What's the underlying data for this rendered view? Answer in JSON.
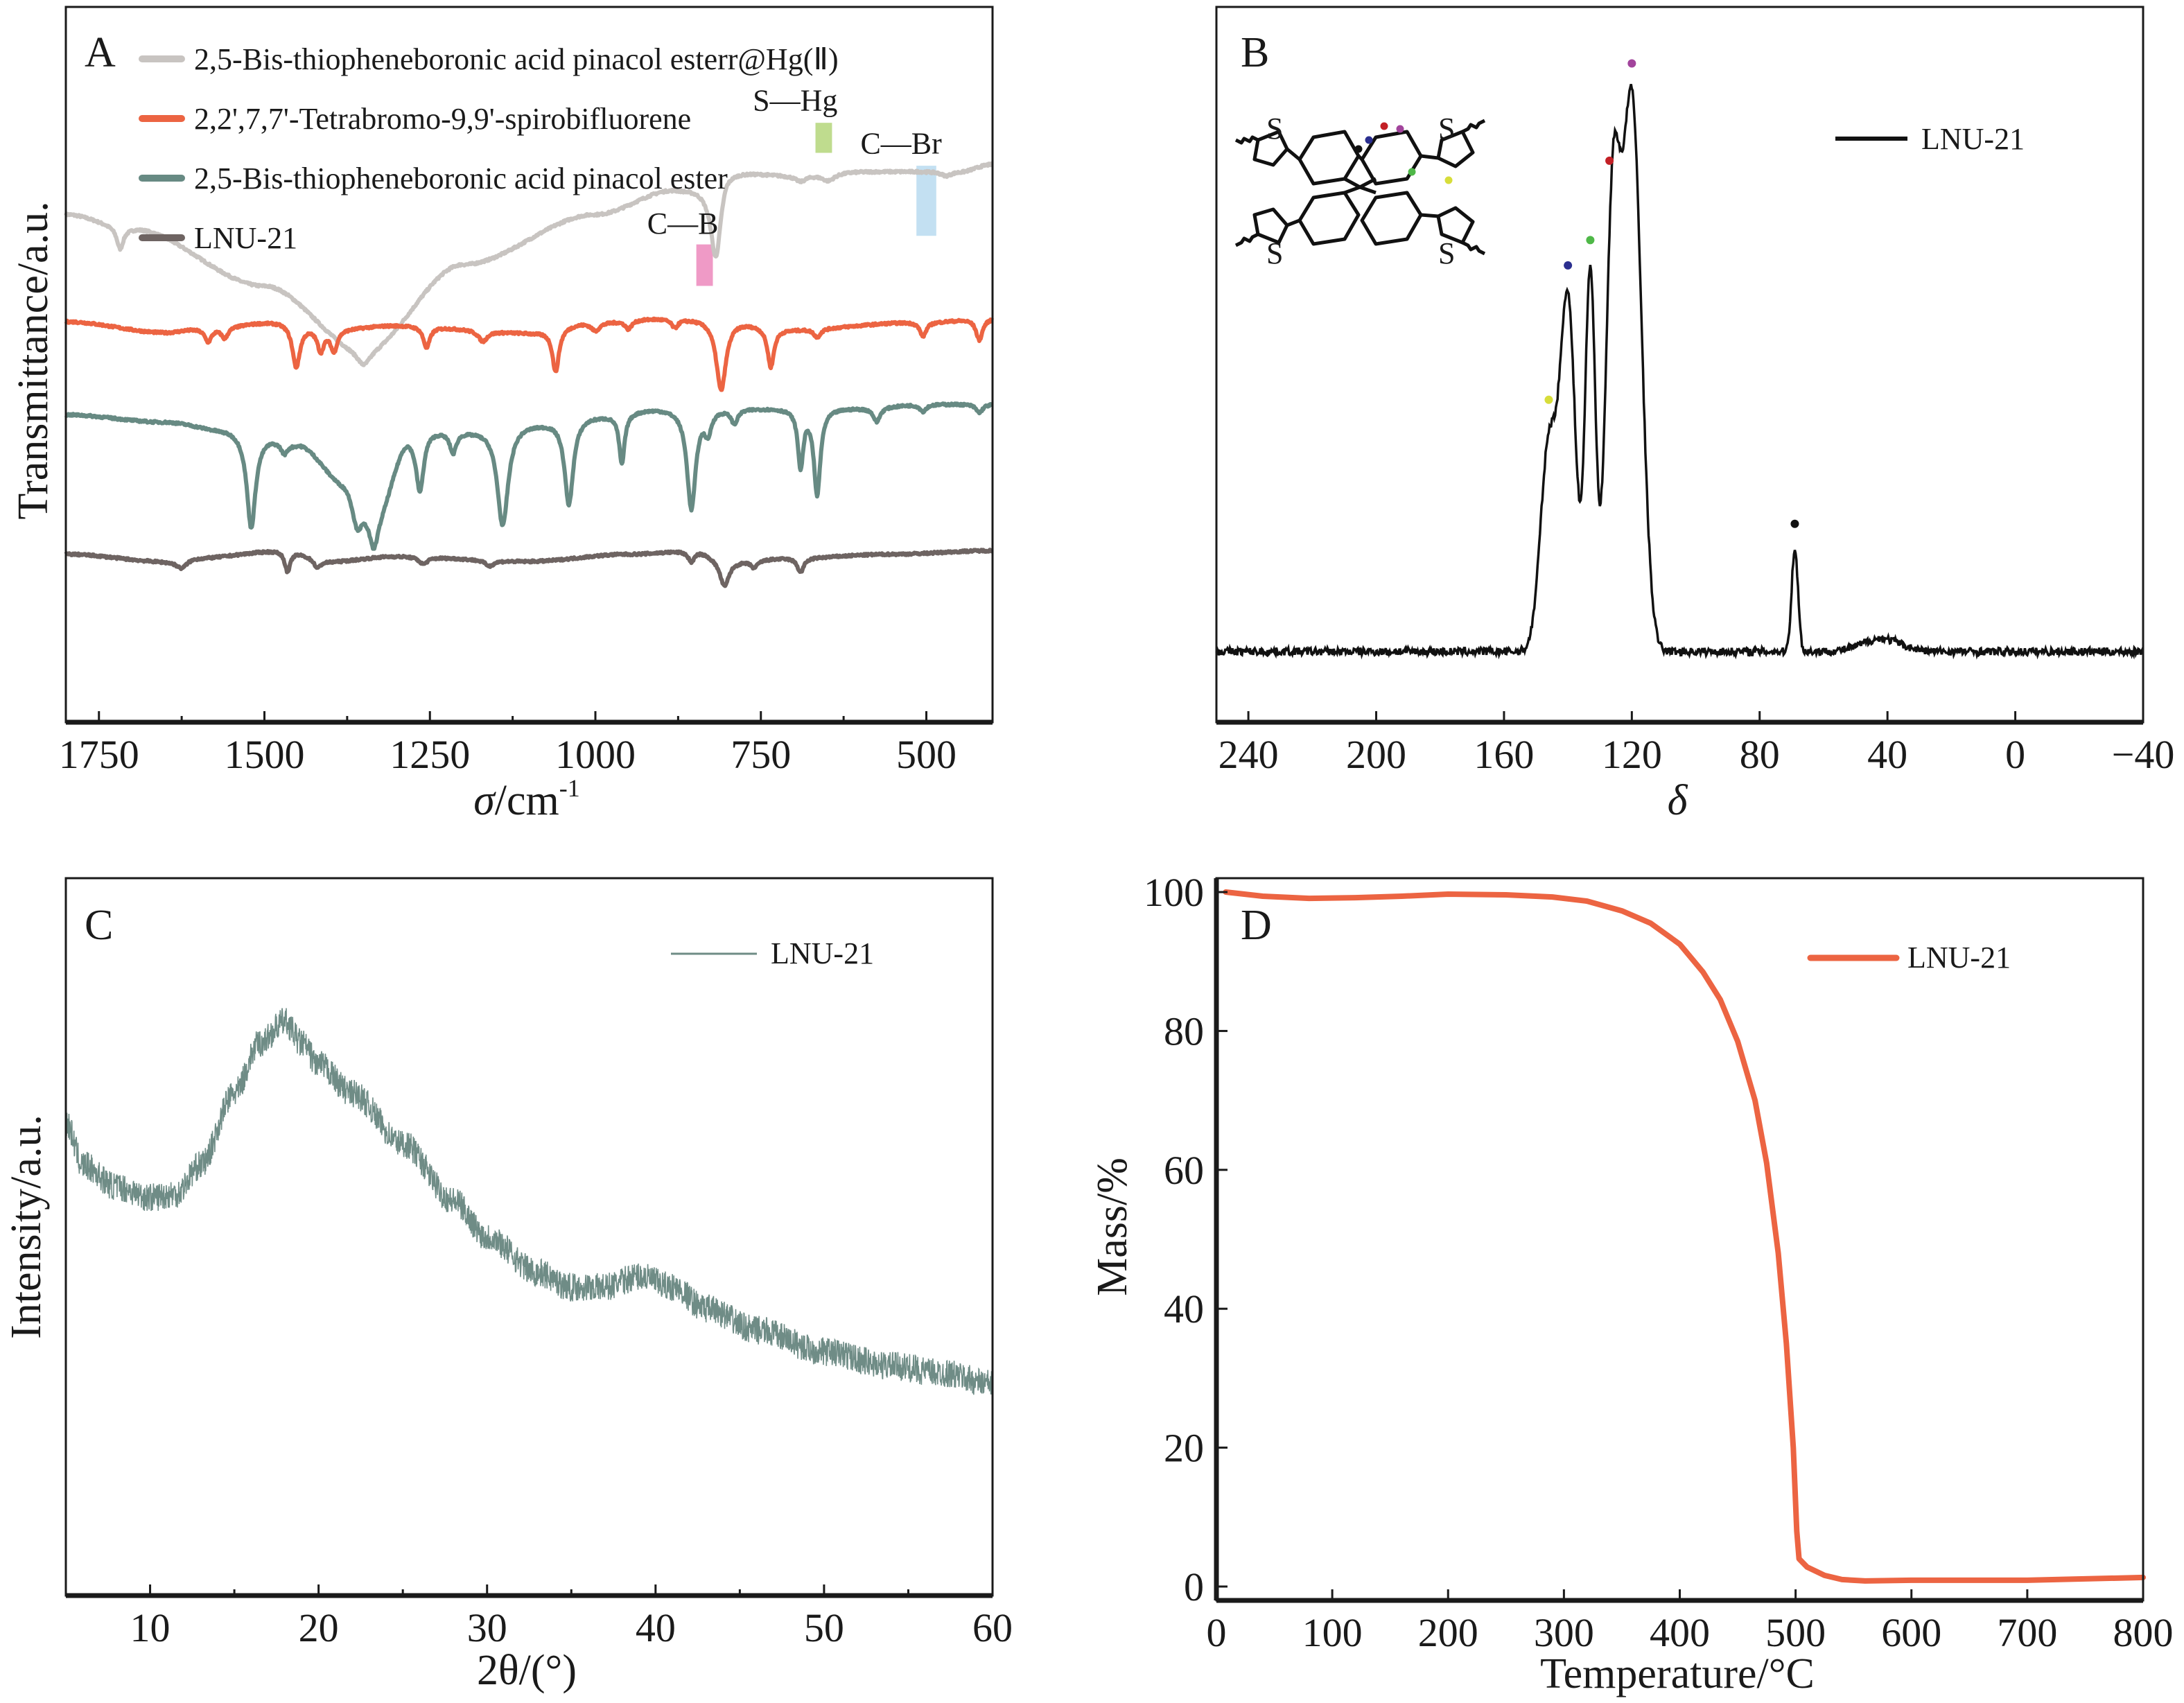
{
  "figure": {
    "panels": [
      "A",
      "B",
      "C",
      "D"
    ]
  },
  "chart_data": [
    {
      "id": "A",
      "type": "line",
      "title": "",
      "panel_label": "A",
      "xlabel": "σ/cm",
      "xlabel_superscript": "-1",
      "ylabel": "Transmittance/a.u.",
      "xlim": [
        1800,
        400
      ],
      "x_reversed": true,
      "xticks": [
        1750,
        1500,
        1250,
        1000,
        750,
        500
      ],
      "xtick_labels": [
        "1750",
        "1500",
        "1250",
        "1000",
        "750",
        "500"
      ],
      "yticks": [],
      "grid": false,
      "legend_position": "top-left",
      "series": [
        {
          "name": "2,5-Bis-thiopheneboronic acid pinacol esterr@Hg(Ⅱ)",
          "color": "#c8c4c1",
          "offset": 0.74,
          "baseline_points": [
            [
              1800,
              0.71
            ],
            [
              1700,
              0.69
            ],
            [
              1500,
              0.61
            ],
            [
              1350,
              0.52
            ],
            [
              1200,
              0.64
            ],
            [
              1000,
              0.71
            ],
            [
              880,
              0.745
            ],
            [
              850,
              0.745
            ],
            [
              820,
              0.74
            ],
            [
              800,
              0.77
            ],
            [
              700,
              0.765
            ],
            [
              600,
              0.77
            ],
            [
              450,
              0.77
            ],
            [
              400,
              0.78
            ]
          ],
          "peaks": [
            [
              1718,
              0.03,
              6
            ],
            [
              1350,
              0.02,
              12
            ],
            [
              818,
              0.09,
              9
            ],
            [
              690,
              0.008,
              10
            ],
            [
              648,
              0.01,
              12
            ],
            [
              470,
              0.006,
              10
            ]
          ]
        },
        {
          "name": "2,2',7,7'-Tetrabromo-9,9'-spirobifluorene",
          "color": "#ec6442",
          "baseline_points": [
            [
              1800,
              0.56
            ],
            [
              1650,
              0.545
            ],
            [
              1600,
              0.55
            ],
            [
              1480,
              0.56
            ],
            [
              1400,
              0.55
            ],
            [
              1300,
              0.555
            ],
            [
              1100,
              0.545
            ],
            [
              1000,
              0.56
            ],
            [
              900,
              0.565
            ],
            [
              820,
              0.565
            ],
            [
              700,
              0.55
            ],
            [
              500,
              0.56
            ],
            [
              400,
              0.565
            ]
          ],
          "peaks": [
            [
              1585,
              0.018,
              6
            ],
            [
              1560,
              0.015,
              6
            ],
            [
              1452,
              0.06,
              7
            ],
            [
              1415,
              0.03,
              6
            ],
            [
              1395,
              0.03,
              6
            ],
            [
              1255,
              0.03,
              6
            ],
            [
              1170,
              0.015,
              8
            ],
            [
              1060,
              0.06,
              6
            ],
            [
              1000,
              0.012,
              8
            ],
            [
              950,
              0.012,
              6
            ],
            [
              880,
              0.012,
              6
            ],
            [
              810,
              0.1,
              9
            ],
            [
              735,
              0.055,
              6
            ],
            [
              665,
              0.012,
              6
            ],
            [
              505,
              0.02,
              6
            ],
            [
              420,
              0.03,
              6
            ]
          ]
        },
        {
          "name": "2,5-Bis-thiopheneboronic acid pinacol ester",
          "color": "#678a83",
          "baseline_points": [
            [
              1800,
              0.43
            ],
            [
              1650,
              0.42
            ],
            [
              1560,
              0.41
            ],
            [
              1500,
              0.4
            ],
            [
              1450,
              0.39
            ],
            [
              1380,
              0.34
            ],
            [
              1330,
              0.3
            ],
            [
              1280,
              0.4
            ],
            [
              1250,
              0.41
            ],
            [
              1200,
              0.41
            ],
            [
              1100,
              0.42
            ],
            [
              1000,
              0.43
            ],
            [
              900,
              0.44
            ],
            [
              800,
              0.44
            ],
            [
              700,
              0.44
            ],
            [
              600,
              0.44
            ],
            [
              500,
              0.445
            ],
            [
              400,
              0.445
            ]
          ],
          "peaks": [
            [
              1520,
              0.13,
              8
            ],
            [
              1470,
              0.015,
              6
            ],
            [
              1360,
              0.05,
              10
            ],
            [
              1335,
              0.05,
              8
            ],
            [
              1265,
              0.08,
              7
            ],
            [
              1215,
              0.03,
              6
            ],
            [
              1140,
              0.14,
              10
            ],
            [
              1040,
              0.12,
              8
            ],
            [
              960,
              0.07,
              5
            ],
            [
              855,
              0.14,
              8
            ],
            [
              830,
              0.03,
              6
            ],
            [
              790,
              0.02,
              6
            ],
            [
              690,
              0.08,
              5
            ],
            [
              665,
              0.12,
              6
            ],
            [
              575,
              0.02,
              6
            ],
            [
              505,
              0.01,
              6
            ],
            [
              420,
              0.012,
              6
            ]
          ]
        },
        {
          "name": "LNU-21",
          "color": "#6e6462",
          "baseline_points": [
            [
              1800,
              0.235
            ],
            [
              1650,
              0.225
            ],
            [
              1600,
              0.23
            ],
            [
              1470,
              0.24
            ],
            [
              1400,
              0.225
            ],
            [
              1300,
              0.232
            ],
            [
              1100,
              0.225
            ],
            [
              950,
              0.235
            ],
            [
              850,
              0.24
            ],
            [
              800,
              0.225
            ],
            [
              700,
              0.23
            ],
            [
              550,
              0.235
            ],
            [
              400,
              0.24
            ]
          ],
          "peaks": [
            [
              1625,
              0.012,
              10
            ],
            [
              1465,
              0.03,
              5
            ],
            [
              1420,
              0.012,
              6
            ],
            [
              1260,
              0.01,
              8
            ],
            [
              1160,
              0.008,
              8
            ],
            [
              855,
              0.015,
              6
            ],
            [
              805,
              0.035,
              8
            ],
            [
              760,
              0.01,
              6
            ],
            [
              690,
              0.02,
              6
            ]
          ]
        }
      ],
      "annotations": [
        {
          "label": "S—Hg",
          "x": 655,
          "band_width": 25,
          "color": "#bfdc8e"
        },
        {
          "label": "C—Br",
          "x": 500,
          "band_width": 30,
          "color": "#c3e0f2"
        },
        {
          "label": "C—B",
          "x": 835,
          "band_width": 25,
          "color": "#ef9ac6"
        }
      ]
    },
    {
      "id": "B",
      "type": "line",
      "panel_label": "B",
      "title": "",
      "xlabel": "δ",
      "ylabel": "",
      "xlim": [
        250,
        -40
      ],
      "x_reversed": true,
      "xticks": [
        240,
        200,
        160,
        120,
        80,
        40,
        0,
        -40
      ],
      "xtick_labels": [
        "240",
        "200",
        "160",
        "120",
        "80",
        "40",
        "0",
        "−40"
      ],
      "grid": false,
      "legend_position": "top-right",
      "series": [
        {
          "name": "LNU-21",
          "color": "#111111",
          "peaks": [
            [
              146,
              0.32,
              2.6
            ],
            [
              140,
              0.54,
              2.4
            ],
            [
              133,
              0.59,
              1.6
            ],
            [
              126,
              0.66,
              2.2
            ],
            [
              120,
              0.86,
              3.0
            ],
            [
              69,
              0.16,
              1.0
            ],
            [
              42,
              0.02,
              6
            ]
          ],
          "baseline": 0.0
        }
      ],
      "peak_markers": [
        {
          "delta": 146,
          "color": "#d7dd3a"
        },
        {
          "delta": 140,
          "color": "#2b2f8f"
        },
        {
          "delta": 133,
          "color": "#4fb848"
        },
        {
          "delta": 127,
          "color": "#c32026"
        },
        {
          "delta": 120,
          "color": "#a2449c"
        },
        {
          "delta": 69,
          "color": "#111111"
        }
      ],
      "inset": {
        "description": "LNU-21 repeat unit: 9,9'-spirobifluorene with four 2-thienyl linkers",
        "atom_labels": [
          "S",
          "S",
          "S",
          "S"
        ],
        "site_markers": [
          {
            "site": "spiro-C",
            "color": "#111111"
          },
          {
            "site": "fluorene-C1",
            "color": "#2b2f8f"
          },
          {
            "site": "fluorene-C2",
            "color": "#c32026"
          },
          {
            "site": "fluorene-C3",
            "color": "#a2449c"
          },
          {
            "site": "fluorene-C4",
            "color": "#4fb848"
          },
          {
            "site": "thiophene-C",
            "color": "#d7dd3a"
          }
        ]
      }
    },
    {
      "id": "C",
      "type": "line",
      "panel_label": "C",
      "title": "",
      "xlabel": "2θ/(°)",
      "ylabel": "Intensity/a.u.",
      "xlim": [
        5,
        60
      ],
      "xticks": [
        10,
        20,
        30,
        40,
        50,
        60
      ],
      "xtick_labels": [
        "10",
        "20",
        "30",
        "40",
        "50",
        "60"
      ],
      "grid": false,
      "legend_position": "top-right",
      "series": [
        {
          "name": "LNU-21",
          "color": "#6f8c86",
          "points": [
            [
              5,
              0.66
            ],
            [
              6,
              0.6
            ],
            [
              8,
              0.57
            ],
            [
              10,
              0.555
            ],
            [
              11.5,
              0.56
            ],
            [
              13,
              0.6
            ],
            [
              15,
              0.7
            ],
            [
              16.5,
              0.77
            ],
            [
              18,
              0.8
            ],
            [
              19,
              0.77
            ],
            [
              20,
              0.74
            ],
            [
              22,
              0.7
            ],
            [
              25,
              0.63
            ],
            [
              28,
              0.55
            ],
            [
              30,
              0.5
            ],
            [
              33,
              0.45
            ],
            [
              35,
              0.43
            ],
            [
              37,
              0.43
            ],
            [
              39,
              0.445
            ],
            [
              41,
              0.43
            ],
            [
              43,
              0.4
            ],
            [
              46,
              0.37
            ],
            [
              50,
              0.34
            ],
            [
              54,
              0.32
            ],
            [
              57,
              0.31
            ],
            [
              60,
              0.295
            ]
          ],
          "noise_amplitude": 0.02
        }
      ]
    },
    {
      "id": "D",
      "type": "line",
      "panel_label": "D",
      "title": "",
      "xlabel": "Temperature/°C",
      "ylabel": "Mass/%",
      "xlim": [
        0,
        800
      ],
      "ylim": [
        -2,
        102
      ],
      "xticks": [
        0,
        100,
        200,
        300,
        400,
        500,
        600,
        700,
        800
      ],
      "xtick_labels": [
        "0",
        "100",
        "200",
        "300",
        "400",
        "500",
        "600",
        "700",
        "800"
      ],
      "yticks": [
        0,
        20,
        40,
        60,
        80,
        100
      ],
      "ytick_labels": [
        "0",
        "20",
        "40",
        "60",
        "80",
        "100"
      ],
      "grid": false,
      "legend_position": "top-right",
      "series": [
        {
          "name": "LNU-21",
          "color": "#ec6442",
          "points": [
            [
              8,
              100
            ],
            [
              40,
              99.4
            ],
            [
              80,
              99.1
            ],
            [
              120,
              99.2
            ],
            [
              160,
              99.4
            ],
            [
              200,
              99.7
            ],
            [
              250,
              99.6
            ],
            [
              290,
              99.3
            ],
            [
              320,
              98.7
            ],
            [
              350,
              97.3
            ],
            [
              375,
              95.5
            ],
            [
              400,
              92.5
            ],
            [
              420,
              88.5
            ],
            [
              435,
              84.5
            ],
            [
              450,
              78.5
            ],
            [
              465,
              70
            ],
            [
              475,
              61
            ],
            [
              485,
              48
            ],
            [
              492,
              35
            ],
            [
              498,
              20
            ],
            [
              501,
              8
            ],
            [
              503,
              4
            ],
            [
              510,
              2.8
            ],
            [
              525,
              1.6
            ],
            [
              540,
              1.0
            ],
            [
              560,
              0.8
            ],
            [
              600,
              0.9
            ],
            [
              700,
              0.9
            ],
            [
              800,
              1.3
            ]
          ]
        }
      ]
    }
  ]
}
